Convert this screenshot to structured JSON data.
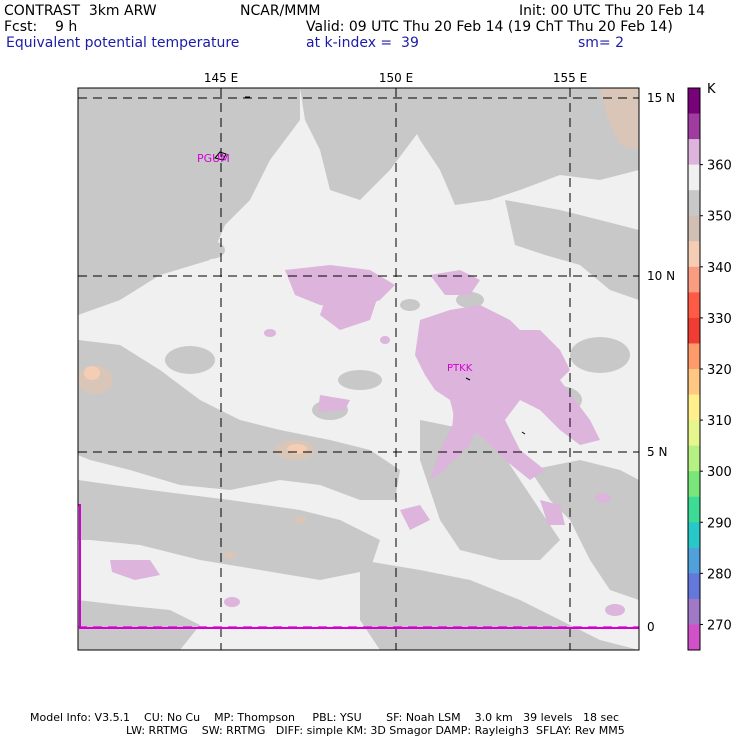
{
  "header": {
    "model": "CONTRAST  3km ARW",
    "org": "NCAR/MMM",
    "init": "Init: 00 UTC Thu 20 Feb 14",
    "fcst": "Fcst:    9 h",
    "valid": "Valid: 09 UTC Thu 20 Feb 14 (19 ChT Thu 20 Feb 14)",
    "field": "Equivalent potential temperature",
    "level": "at k-index =  39",
    "smooth": "sm= 2"
  },
  "map": {
    "lon_labels": [
      "145 E",
      "150 E",
      "155 E"
    ],
    "lat_labels": [
      "15 N",
      "10 N",
      "5 N",
      "0"
    ],
    "stations": [
      "PGUM",
      "PTKK"
    ]
  },
  "legend": {
    "unit": "K",
    "labels": [
      "360",
      "350",
      "340",
      "330",
      "320",
      "310",
      "300",
      "290",
      "280",
      "270"
    ],
    "colors": [
      "#780078",
      "#a03ca0",
      "#dcb4dc",
      "#f0f0f0",
      "#c8c8c8",
      "#d2bfb4",
      "#f5cdb4",
      "#fa9c82",
      "#ff5a46",
      "#f03c32",
      "#ff9a6a",
      "#ffc882",
      "#fff08c",
      "#e6f58c",
      "#b4f082",
      "#78e678",
      "#3cdc96",
      "#28c8c8",
      "#50a0dc",
      "#6478dc",
      "#a078c8",
      "#d250c8"
    ]
  },
  "footer": {
    "line1": "Model Info: V3.5.1    CU: No Cu    MP: Thompson     PBL: YSU       SF: Noah LSM    3.0 km   39 levels   18 sec",
    "line2": "LW: RRTMG    SW: RRTMG   DIFF: simple KM: 3D Smagor DAMP: Rayleigh3  SFLAY: Rev MM5"
  }
}
